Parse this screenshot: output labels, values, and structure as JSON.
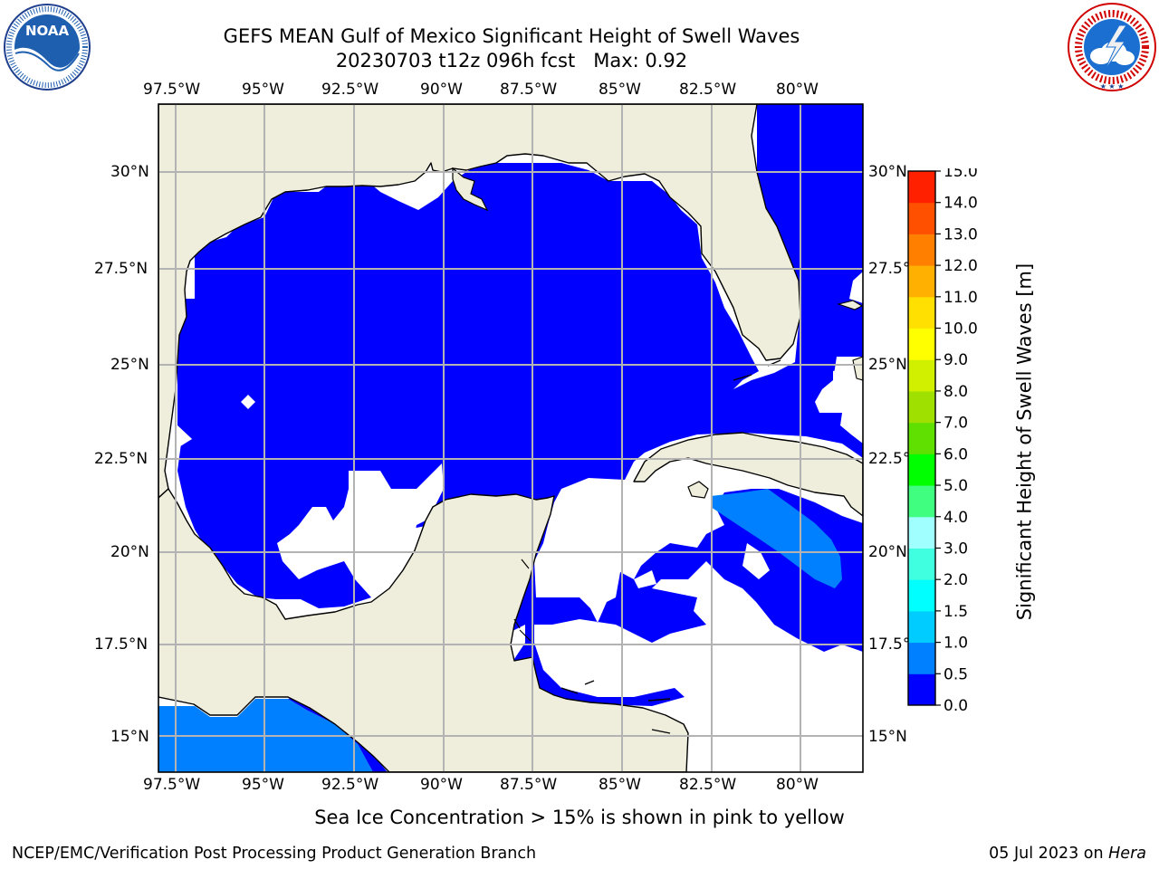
{
  "header": {
    "title_line1": "GEFS MEAN Gulf of Mexico Significant Height of Swell Waves",
    "title_line2": "20230703 t12z 096h fcst   Max: 0.92"
  },
  "logos": {
    "noaa": {
      "text": "NOAA",
      "ring_text": "NATIONAL OCEANIC AND ATMOSPHERIC ADMINISTRATION · U.S. DEPARTMENT OF COMMERCE"
    },
    "nws": {
      "ring_text": "NATIONAL WEATHER SERVICE"
    }
  },
  "map": {
    "lon_labels": [
      "97.5°W",
      "95°W",
      "92.5°W",
      "90°W",
      "87.5°W",
      "85°W",
      "82.5°W",
      "80°W"
    ],
    "lat_labels_left": [
      "30°N",
      "27.5°N",
      "25°N",
      "22.5°N",
      "20°N",
      "17.5°N",
      "15°N"
    ],
    "lat_labels_right": [
      "30°N",
      "27.5°N",
      "25°N",
      "22.5°N",
      "20°N",
      "17.5°N",
      "15°N"
    ],
    "extent": {
      "lon_min": -98.0,
      "lon_max": -78.2,
      "lat_min": 14.0,
      "lat_max": 31.8
    },
    "colors": {
      "land": "#efeddb",
      "ocean_low": "#0000ff",
      "ocean_mid": "#0080ff",
      "grid": "#b3b3b3",
      "coast": "#000000",
      "missing": "#ffffff"
    }
  },
  "colorbar": {
    "label": "Significant Height of Swell Waves [m]",
    "tick_labels": [
      "0.0",
      "0.5",
      "1.0",
      "1.5",
      "2.0",
      "3.0",
      "4.0",
      "5.0",
      "6.0",
      "7.0",
      "8.0",
      "9.0",
      "10.0",
      "11.0",
      "12.0",
      "13.0",
      "14.0",
      "15.0"
    ],
    "bounds": [
      0,
      0.5,
      1,
      1.5,
      2,
      3,
      4,
      5,
      6,
      7,
      8,
      9,
      10,
      11,
      12,
      13,
      14,
      15
    ],
    "colors": [
      "#0000ff",
      "#0080ff",
      "#00ccff",
      "#00ffff",
      "#40ffe0",
      "#a0ffff",
      "#40ff80",
      "#00ff00",
      "#60e000",
      "#a0e000",
      "#d0f000",
      "#ffff00",
      "#ffe000",
      "#ffb000",
      "#ff8000",
      "#ff5000",
      "#ff2000"
    ]
  },
  "footer": {
    "note": "Sea Ice Concentration > 15% is shown in pink to yellow",
    "left": "NCEP/EMC/Verification Post Processing Product Generation Branch",
    "date": "05 Jul 2023 on ",
    "machine": "Hera"
  }
}
